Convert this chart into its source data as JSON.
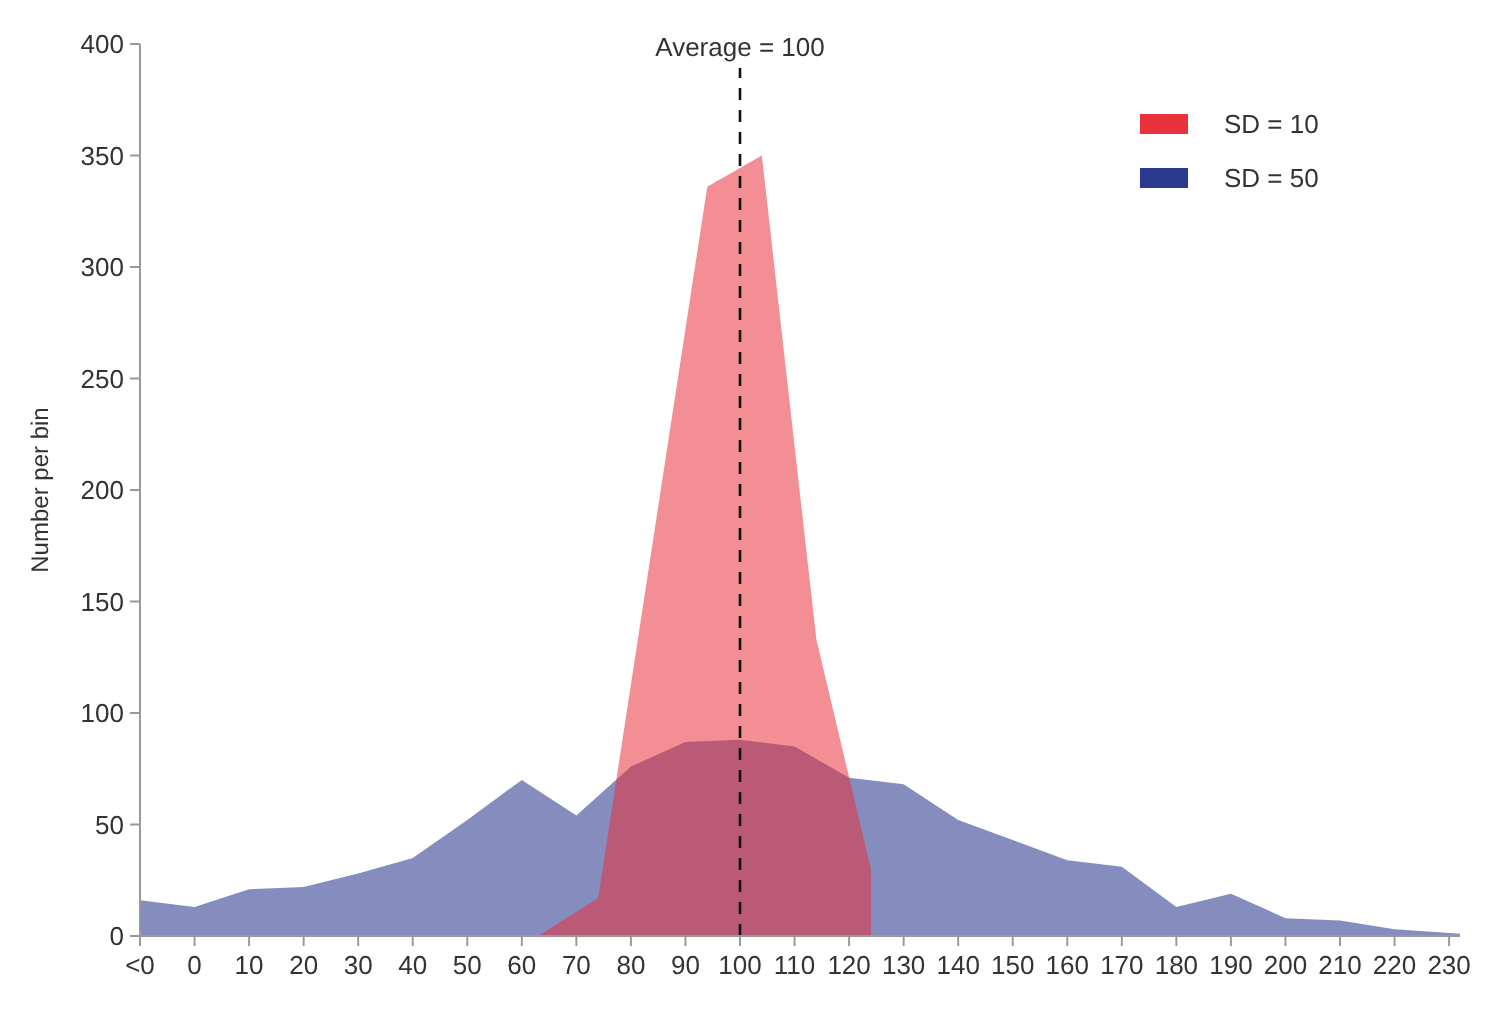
{
  "chart_data": {
    "type": "area",
    "ylabel": "Number per bin",
    "xlim": [
      -10,
      232
    ],
    "ylim": [
      0,
      400
    ],
    "xticks": [
      {
        "value": -10,
        "label": "<0"
      },
      0,
      10,
      20,
      30,
      40,
      50,
      60,
      70,
      80,
      90,
      100,
      110,
      120,
      130,
      140,
      150,
      160,
      170,
      180,
      190,
      200,
      210,
      220,
      230
    ],
    "yticks": [
      0,
      50,
      100,
      150,
      200,
      250,
      300,
      350,
      400
    ],
    "series": [
      {
        "name": "SD = 50",
        "color": "#2b3a8f",
        "x": [
          -10,
          0,
          10,
          20,
          30,
          40,
          50,
          60,
          70,
          80,
          90,
          100,
          110,
          120,
          130,
          140,
          150,
          160,
          170,
          180,
          190,
          200,
          210,
          220,
          232
        ],
        "values": [
          16,
          13,
          21,
          22,
          28,
          35,
          52,
          70,
          54,
          76,
          87,
          88,
          85,
          71,
          68,
          52,
          43,
          34,
          31,
          13,
          19,
          8,
          7,
          3,
          1
        ]
      },
      {
        "name": "SD = 10",
        "color": "#e8323c",
        "x": [
          63,
          74,
          94,
          104,
          114,
          124,
          124
        ],
        "values": [
          0,
          17,
          336,
          350,
          133,
          30,
          0
        ]
      }
    ],
    "ref_lines": [
      {
        "axis": "x",
        "value": 100,
        "label": "Average = 100",
        "line_style": "dashed"
      }
    ],
    "legend": "top right",
    "grid": false
  }
}
